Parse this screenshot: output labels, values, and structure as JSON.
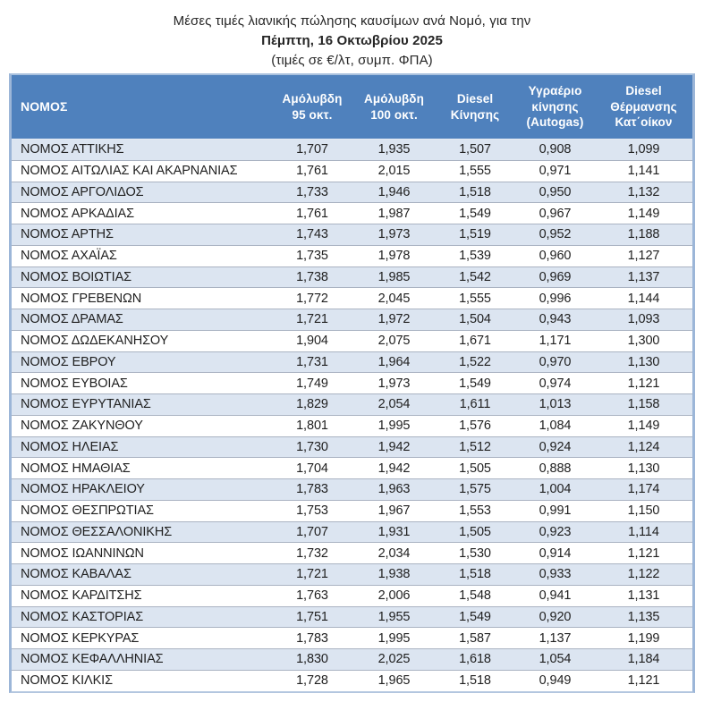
{
  "title": {
    "line1": "Μέσες τιμές λιανικής πώλησης καυσίμων ανά Νομό, για την",
    "line2": "Πέμπτη, 16 Οκτωβρίου 2025",
    "line3": "(τιμές σε €/λτ, συμπ. ΦΠΑ)"
  },
  "colors": {
    "header_bg": "#4f81bd",
    "header_text": "#ffffff",
    "stripe_bg": "#dce5f1",
    "outer_border": "#9cb6d8",
    "row_separator": "#aab3c2"
  },
  "table": {
    "columns": [
      {
        "label": "ΝΟΜΟΣ"
      },
      {
        "label": "Αμόλυβδη\n95 οκτ."
      },
      {
        "label": "Αμόλυβδη\n100 οκτ."
      },
      {
        "label": "Diesel\nΚίνησης"
      },
      {
        "label": "Υγραέριο\nκίνησης\n(Autogas)"
      },
      {
        "label": "Diesel\nΘέρμανσης\nΚατ΄οίκον"
      }
    ],
    "rows": [
      {
        "name": "ΝΟΜΟΣ ΑΤΤΙΚΗΣ",
        "values": [
          "1,707",
          "1,935",
          "1,507",
          "0,908",
          "1,099"
        ]
      },
      {
        "name": "ΝΟΜΟΣ ΑΙΤΩΛΙΑΣ ΚΑΙ ΑΚΑΡΝΑΝΙΑΣ",
        "values": [
          "1,761",
          "2,015",
          "1,555",
          "0,971",
          "1,141"
        ]
      },
      {
        "name": "ΝΟΜΟΣ ΑΡΓΟΛΙΔΟΣ",
        "values": [
          "1,733",
          "1,946",
          "1,518",
          "0,950",
          "1,132"
        ]
      },
      {
        "name": "ΝΟΜΟΣ ΑΡΚΑΔΙΑΣ",
        "values": [
          "1,761",
          "1,987",
          "1,549",
          "0,967",
          "1,149"
        ]
      },
      {
        "name": "ΝΟΜΟΣ ΑΡΤΗΣ",
        "values": [
          "1,743",
          "1,973",
          "1,519",
          "0,952",
          "1,188"
        ]
      },
      {
        "name": "ΝΟΜΟΣ ΑΧΑΪΑΣ",
        "values": [
          "1,735",
          "1,978",
          "1,539",
          "0,960",
          "1,127"
        ]
      },
      {
        "name": "ΝΟΜΟΣ ΒΟΙΩΤΙΑΣ",
        "values": [
          "1,738",
          "1,985",
          "1,542",
          "0,969",
          "1,137"
        ]
      },
      {
        "name": "ΝΟΜΟΣ ΓΡΕΒΕΝΩΝ",
        "values": [
          "1,772",
          "2,045",
          "1,555",
          "0,996",
          "1,144"
        ]
      },
      {
        "name": "ΝΟΜΟΣ ΔΡΑΜΑΣ",
        "values": [
          "1,721",
          "1,972",
          "1,504",
          "0,943",
          "1,093"
        ]
      },
      {
        "name": "ΝΟΜΟΣ ΔΩΔΕΚΑΝΗΣΟΥ",
        "values": [
          "1,904",
          "2,075",
          "1,671",
          "1,171",
          "1,300"
        ]
      },
      {
        "name": "ΝΟΜΟΣ ΕΒΡΟΥ",
        "values": [
          "1,731",
          "1,964",
          "1,522",
          "0,970",
          "1,130"
        ]
      },
      {
        "name": "ΝΟΜΟΣ ΕΥΒΟΙΑΣ",
        "values": [
          "1,749",
          "1,973",
          "1,549",
          "0,974",
          "1,121"
        ]
      },
      {
        "name": "ΝΟΜΟΣ ΕΥΡΥΤΑΝΙΑΣ",
        "values": [
          "1,829",
          "2,054",
          "1,611",
          "1,013",
          "1,158"
        ]
      },
      {
        "name": "ΝΟΜΟΣ ΖΑΚΥΝΘΟΥ",
        "values": [
          "1,801",
          "1,995",
          "1,576",
          "1,084",
          "1,149"
        ]
      },
      {
        "name": "ΝΟΜΟΣ ΗΛΕΙΑΣ",
        "values": [
          "1,730",
          "1,942",
          "1,512",
          "0,924",
          "1,124"
        ]
      },
      {
        "name": "ΝΟΜΟΣ ΗΜΑΘΙΑΣ",
        "values": [
          "1,704",
          "1,942",
          "1,505",
          "0,888",
          "1,130"
        ]
      },
      {
        "name": "ΝΟΜΟΣ ΗΡΑΚΛΕΙΟΥ",
        "values": [
          "1,783",
          "1,963",
          "1,575",
          "1,004",
          "1,174"
        ]
      },
      {
        "name": "ΝΟΜΟΣ ΘΕΣΠΡΩΤΙΑΣ",
        "values": [
          "1,753",
          "1,967",
          "1,553",
          "0,991",
          "1,150"
        ]
      },
      {
        "name": "ΝΟΜΟΣ ΘΕΣΣΑΛΟΝΙΚΗΣ",
        "values": [
          "1,707",
          "1,931",
          "1,505",
          "0,923",
          "1,114"
        ]
      },
      {
        "name": "ΝΟΜΟΣ ΙΩΑΝΝΙΝΩΝ",
        "values": [
          "1,732",
          "2,034",
          "1,530",
          "0,914",
          "1,121"
        ]
      },
      {
        "name": "ΝΟΜΟΣ ΚΑΒΑΛΑΣ",
        "values": [
          "1,721",
          "1,938",
          "1,518",
          "0,933",
          "1,122"
        ]
      },
      {
        "name": "ΝΟΜΟΣ ΚΑΡΔΙΤΣΗΣ",
        "values": [
          "1,763",
          "2,006",
          "1,548",
          "0,941",
          "1,131"
        ]
      },
      {
        "name": "ΝΟΜΟΣ ΚΑΣΤΟΡΙΑΣ",
        "values": [
          "1,751",
          "1,955",
          "1,549",
          "0,920",
          "1,135"
        ]
      },
      {
        "name": "ΝΟΜΟΣ ΚΕΡΚΥΡΑΣ",
        "values": [
          "1,783",
          "1,995",
          "1,587",
          "1,137",
          "1,199"
        ]
      },
      {
        "name": "ΝΟΜΟΣ ΚΕΦΑΛΛΗΝΙΑΣ",
        "values": [
          "1,830",
          "2,025",
          "1,618",
          "1,054",
          "1,184"
        ]
      },
      {
        "name": "ΝΟΜΟΣ ΚΙΛΚΙΣ",
        "values": [
          "1,728",
          "1,965",
          "1,518",
          "0,949",
          "1,121"
        ]
      }
    ]
  }
}
